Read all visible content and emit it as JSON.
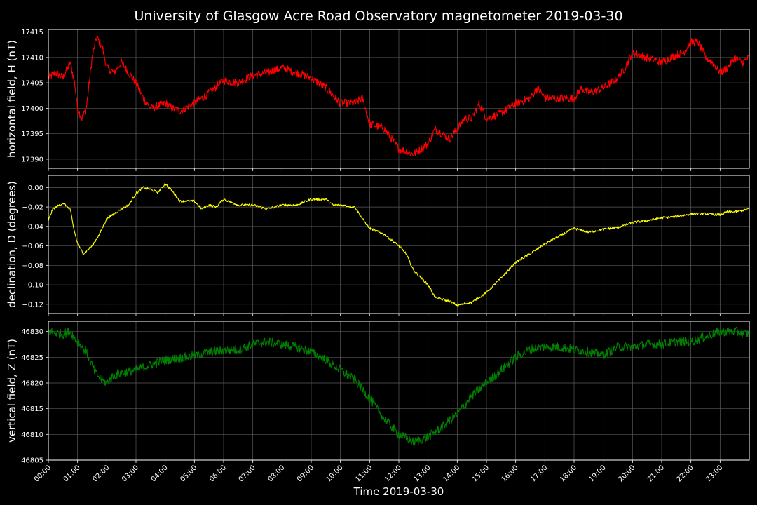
{
  "chart_data": {
    "type": "line",
    "title": "University of Glasgow Acre Road Observatory magnetometer 2019-03-30",
    "xlabel": "Time 2019-03-30",
    "x_tick_labels": [
      "00:00",
      "01:00",
      "02:00",
      "03:00",
      "04:00",
      "05:00",
      "06:00",
      "07:00",
      "08:00",
      "09:00",
      "10:00",
      "11:00",
      "12:00",
      "13:00",
      "14:00",
      "15:00",
      "16:00",
      "17:00",
      "18:00",
      "19:00",
      "20:00",
      "21:00",
      "22:00",
      "23:00"
    ],
    "xlim_hours": [
      0,
      24
    ],
    "grid": true,
    "background": "#000000",
    "panels": [
      {
        "name": "horizontal",
        "ylabel": "horizontal field, H (nT)",
        "color": "#ff0000",
        "ylim": [
          17388.2,
          17415.5
        ],
        "yticks": [
          17390,
          17395,
          17400,
          17405,
          17410,
          17415
        ],
        "ytick_labels": [
          "17390",
          "17395",
          "17400",
          "17405",
          "17410",
          "17415"
        ],
        "noise": 0.8,
        "points": [
          [
            0,
            17406
          ],
          [
            0.25,
            17407
          ],
          [
            0.5,
            17406
          ],
          [
            0.75,
            17409
          ],
          [
            0.9,
            17405
          ],
          [
            1.0,
            17400
          ],
          [
            1.15,
            17398
          ],
          [
            1.3,
            17400
          ],
          [
            1.5,
            17410
          ],
          [
            1.65,
            17414
          ],
          [
            1.85,
            17412
          ],
          [
            2.0,
            17408
          ],
          [
            2.25,
            17407
          ],
          [
            2.5,
            17409
          ],
          [
            2.75,
            17407
          ],
          [
            3.0,
            17405
          ],
          [
            3.25,
            17402
          ],
          [
            3.5,
            17400
          ],
          [
            4.0,
            17401
          ],
          [
            4.25,
            17400
          ],
          [
            4.5,
            17399.5
          ],
          [
            5.0,
            17401
          ],
          [
            5.5,
            17403
          ],
          [
            6.0,
            17405.5
          ],
          [
            6.5,
            17405
          ],
          [
            7.0,
            17406.5
          ],
          [
            7.5,
            17407
          ],
          [
            8.0,
            17408
          ],
          [
            8.5,
            17407
          ],
          [
            9.0,
            17406
          ],
          [
            9.5,
            17404
          ],
          [
            10.0,
            17401
          ],
          [
            10.5,
            17401
          ],
          [
            10.75,
            17402
          ],
          [
            11.0,
            17397
          ],
          [
            11.5,
            17396
          ],
          [
            12.0,
            17392
          ],
          [
            12.5,
            17391
          ],
          [
            13.0,
            17393
          ],
          [
            13.25,
            17396
          ],
          [
            13.5,
            17395
          ],
          [
            13.75,
            17394
          ],
          [
            14.0,
            17396
          ],
          [
            14.25,
            17398
          ],
          [
            14.5,
            17398
          ],
          [
            14.75,
            17401
          ],
          [
            15.0,
            17398
          ],
          [
            15.5,
            17399
          ],
          [
            16.0,
            17401
          ],
          [
            16.5,
            17402
          ],
          [
            16.75,
            17404
          ],
          [
            17.0,
            17402
          ],
          [
            17.5,
            17402
          ],
          [
            18.0,
            17402
          ],
          [
            18.25,
            17404
          ],
          [
            18.5,
            17403
          ],
          [
            19.0,
            17404
          ],
          [
            19.5,
            17406
          ],
          [
            19.75,
            17408
          ],
          [
            20.0,
            17411
          ],
          [
            20.5,
            17410
          ],
          [
            21.0,
            17409
          ],
          [
            21.5,
            17410.5
          ],
          [
            21.75,
            17411
          ],
          [
            22.0,
            17413
          ],
          [
            22.25,
            17413
          ],
          [
            22.5,
            17410
          ],
          [
            22.75,
            17409
          ],
          [
            23.0,
            17407
          ],
          [
            23.25,
            17408
          ],
          [
            23.5,
            17410
          ],
          [
            23.75,
            17409
          ],
          [
            24,
            17410
          ]
        ]
      },
      {
        "name": "declination",
        "ylabel": "declination, D (degrees)",
        "color": "#ffff00",
        "ylim": [
          -0.1295,
          0.0125
        ],
        "yticks": [
          -0.12,
          -0.1,
          -0.08,
          -0.06,
          -0.04,
          -0.02,
          0.0
        ],
        "ytick_labels": [
          "−0.12",
          "−0.10",
          "−0.08",
          "−0.06",
          "−0.04",
          "−0.02",
          "0.00"
        ],
        "noise": 0.0012,
        "points": [
          [
            0,
            -0.034
          ],
          [
            0.15,
            -0.022
          ],
          [
            0.5,
            -0.016
          ],
          [
            0.75,
            -0.022
          ],
          [
            0.85,
            -0.04
          ],
          [
            1.0,
            -0.058
          ],
          [
            1.2,
            -0.068
          ],
          [
            1.5,
            -0.06
          ],
          [
            1.75,
            -0.048
          ],
          [
            2.0,
            -0.032
          ],
          [
            2.5,
            -0.022
          ],
          [
            2.75,
            -0.018
          ],
          [
            3.0,
            -0.006
          ],
          [
            3.25,
            0.0
          ],
          [
            3.5,
            -0.002
          ],
          [
            3.75,
            -0.005
          ],
          [
            4.0,
            0.004
          ],
          [
            4.25,
            -0.004
          ],
          [
            4.5,
            -0.014
          ],
          [
            5.0,
            -0.014
          ],
          [
            5.25,
            -0.022
          ],
          [
            5.5,
            -0.018
          ],
          [
            5.75,
            -0.02
          ],
          [
            6.0,
            -0.012
          ],
          [
            6.5,
            -0.018
          ],
          [
            7.0,
            -0.018
          ],
          [
            7.5,
            -0.022
          ],
          [
            8.0,
            -0.018
          ],
          [
            8.5,
            -0.018
          ],
          [
            9.0,
            -0.012
          ],
          [
            9.5,
            -0.012
          ],
          [
            9.75,
            -0.018
          ],
          [
            10.0,
            -0.018
          ],
          [
            10.5,
            -0.02
          ],
          [
            10.75,
            -0.032
          ],
          [
            11.0,
            -0.042
          ],
          [
            11.5,
            -0.048
          ],
          [
            12.0,
            -0.06
          ],
          [
            12.25,
            -0.068
          ],
          [
            12.5,
            -0.085
          ],
          [
            13.0,
            -0.1
          ],
          [
            13.25,
            -0.113
          ],
          [
            13.5,
            -0.115
          ],
          [
            13.75,
            -0.117
          ],
          [
            14.0,
            -0.121
          ],
          [
            14.5,
            -0.118
          ],
          [
            15.0,
            -0.108
          ],
          [
            15.5,
            -0.093
          ],
          [
            16.0,
            -0.077
          ],
          [
            16.5,
            -0.068
          ],
          [
            17.0,
            -0.058
          ],
          [
            17.5,
            -0.05
          ],
          [
            18.0,
            -0.042
          ],
          [
            18.5,
            -0.046
          ],
          [
            19.0,
            -0.043
          ],
          [
            19.5,
            -0.041
          ],
          [
            20.0,
            -0.036
          ],
          [
            20.5,
            -0.034
          ],
          [
            21.0,
            -0.031
          ],
          [
            21.5,
            -0.03
          ],
          [
            22.0,
            -0.027
          ],
          [
            22.5,
            -0.027
          ],
          [
            23.0,
            -0.028
          ],
          [
            23.25,
            -0.025
          ],
          [
            23.5,
            -0.025
          ],
          [
            24,
            -0.022
          ]
        ]
      },
      {
        "name": "vertical",
        "ylabel": "vertical field, Z (nT)",
        "color": "#008000",
        "ylim": [
          46805,
          46832
        ],
        "yticks": [
          46805,
          46810,
          46815,
          46820,
          46825,
          46830
        ],
        "ytick_labels": [
          "46805",
          "46810",
          "46815",
          "46820",
          "46825",
          "46830"
        ],
        "noise": 0.9,
        "points": [
          [
            0,
            46830
          ],
          [
            0.5,
            46829.5
          ],
          [
            0.75,
            46830
          ],
          [
            1.0,
            46828
          ],
          [
            1.3,
            46826
          ],
          [
            1.6,
            46822
          ],
          [
            1.85,
            46820.5
          ],
          [
            2.0,
            46820
          ],
          [
            2.25,
            46821.5
          ],
          [
            2.5,
            46822
          ],
          [
            3.0,
            46822.5
          ],
          [
            3.5,
            46823.5
          ],
          [
            4.0,
            46824.5
          ],
          [
            4.5,
            46824.8
          ],
          [
            5.0,
            46825.3
          ],
          [
            5.5,
            46826
          ],
          [
            6.0,
            46826.3
          ],
          [
            6.5,
            46826.5
          ],
          [
            7.0,
            46827.5
          ],
          [
            7.5,
            46828
          ],
          [
            8.0,
            46827.5
          ],
          [
            8.5,
            46827
          ],
          [
            9.0,
            46826
          ],
          [
            9.5,
            46824.5
          ],
          [
            10.0,
            46822.5
          ],
          [
            10.5,
            46820.5
          ],
          [
            11.0,
            46817
          ],
          [
            11.5,
            46813
          ],
          [
            12.0,
            46810
          ],
          [
            12.5,
            46808.5
          ],
          [
            13.0,
            46809.5
          ],
          [
            13.5,
            46811.5
          ],
          [
            14.0,
            46814
          ],
          [
            14.5,
            46817.5
          ],
          [
            15.0,
            46820
          ],
          [
            15.5,
            46822.5
          ],
          [
            16.0,
            46825
          ],
          [
            16.5,
            46826.5
          ],
          [
            17.0,
            46827
          ],
          [
            17.5,
            46827
          ],
          [
            18.0,
            46826.5
          ],
          [
            18.5,
            46826
          ],
          [
            19.0,
            46825.5
          ],
          [
            19.5,
            46827
          ],
          [
            20.0,
            46827
          ],
          [
            20.5,
            46827.5
          ],
          [
            21.0,
            46827.5
          ],
          [
            21.5,
            46828
          ],
          [
            22.0,
            46828
          ],
          [
            22.5,
            46829
          ],
          [
            23.0,
            46830
          ],
          [
            23.5,
            46830
          ],
          [
            24,
            46829.5
          ]
        ]
      }
    ]
  }
}
